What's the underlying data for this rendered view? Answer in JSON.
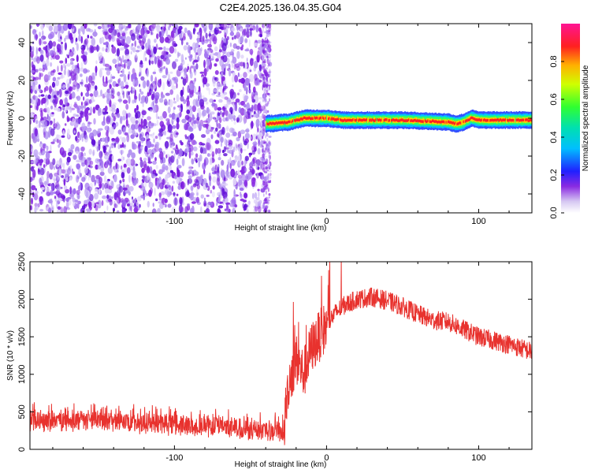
{
  "title": "C2E4.2025.136.04.35.G04",
  "chart_data": [
    {
      "type": "heatmap",
      "xlabel": "Height of straight line (km)",
      "ylabel": "Frequency (Hz)",
      "xlim": [
        -195,
        135
      ],
      "ylim": [
        -50,
        50
      ],
      "x_ticks": [
        -100,
        0,
        100
      ],
      "x_tick_labels": [
        "-100",
        "0",
        "100"
      ],
      "y_ticks": [
        -40,
        -20,
        0,
        20,
        40
      ],
      "y_tick_labels": [
        "-40",
        "-20",
        "0",
        "20",
        "40"
      ],
      "colorbar": {
        "label": "Normalized spectral amplitude",
        "range": [
          0,
          1
        ],
        "ticks": [
          0.0,
          0.2,
          0.4,
          0.6,
          0.8
        ],
        "tick_labels": [
          "0.0",
          "0.2",
          "0.4",
          "0.6",
          "0.8"
        ]
      },
      "noise_region_x": [
        -195,
        -40
      ],
      "signal_band": {
        "x": [
          -40,
          -25,
          -15,
          -10,
          0,
          10,
          50,
          80,
          85,
          90,
          95,
          100,
          135
        ],
        "frequency": [
          -3,
          -2,
          0,
          0,
          0,
          -1,
          -1,
          -2,
          -3,
          -2,
          0,
          -1,
          -1
        ]
      },
      "grid": false
    },
    {
      "type": "line",
      "xlabel": "Height of straight line (km)",
      "ylabel": "SNR (10 * v/v)",
      "xlim": [
        -195,
        135
      ],
      "ylim": [
        0,
        2500
      ],
      "x_ticks": [
        -100,
        0,
        100
      ],
      "x_tick_labels": [
        "-100",
        "0",
        "100"
      ],
      "y_ticks": [
        0,
        500,
        1000,
        1500,
        2000,
        2500
      ],
      "y_tick_labels": [
        "0",
        "500",
        "1000",
        "1500",
        "2000",
        "2500"
      ],
      "series": [
        {
          "color": "#e8322e",
          "x": [
            -195,
            -170,
            -150,
            -130,
            -110,
            -90,
            -70,
            -50,
            -35,
            -28,
            -25,
            -20,
            -15,
            -10,
            -5,
            0,
            5,
            10,
            20,
            30,
            40,
            50,
            60,
            70,
            80,
            90,
            100,
            110,
            120,
            135
          ],
          "y": [
            380,
            390,
            370,
            360,
            340,
            320,
            300,
            270,
            250,
            240,
            900,
            1200,
            1000,
            1350,
            1500,
            1650,
            1800,
            1900,
            2000,
            2030,
            1980,
            1900,
            1800,
            1720,
            1700,
            1600,
            1500,
            1450,
            1400,
            1300
          ]
        }
      ],
      "grid": false
    }
  ]
}
